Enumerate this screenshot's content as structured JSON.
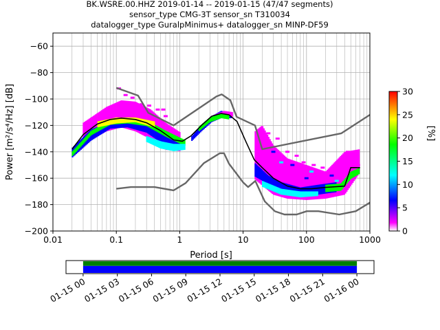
{
  "chart_data": [
    {
      "type": "heatmap",
      "title_lines": [
        "BK.WSRE.00.HHZ   2019-01-14 -- 2019-01-15  (47/47 segments)",
        "sensor_type CMG-3T sensor_sn T310034",
        "datalogger_type GuralpMinimus+ datalogger_sn MINP-DF59"
      ],
      "xlabel": "Period [s]",
      "ylabel": "Power [m²/s⁴/Hz] [dB]",
      "xscale": "log",
      "xlim": [
        0.01,
        1000
      ],
      "ylim": [
        -200,
        -50
      ],
      "grid": true,
      "x_ticks": [
        {
          "value": 0.01,
          "label": "0.01"
        },
        {
          "value": 0.1,
          "label": "0.1"
        },
        {
          "value": 1,
          "label": "1"
        },
        {
          "value": 10,
          "label": "10"
        },
        {
          "value": 100,
          "label": "100"
        },
        {
          "value": 1000,
          "label": "1000"
        }
      ],
      "y_ticks": [
        -200,
        -180,
        -160,
        -140,
        -120,
        -100,
        -80,
        -60
      ],
      "colorbar": {
        "label": "[%]",
        "range": [
          0,
          30
        ],
        "ticks": [
          0,
          5,
          10,
          15,
          20,
          25,
          30
        ],
        "colormap": [
          "#ffffff",
          "#ff00ff",
          "#0000ff",
          "#00ffff",
          "#00ff00",
          "#ffff00",
          "#ff0000"
        ]
      },
      "noise_model_high": {
        "x": [
          0.1,
          0.22,
          0.32,
          0.8,
          3.8,
          4.6,
          6.3,
          7.9,
          15.4,
          20,
          354.8,
          1000
        ],
        "y": [
          -91.5,
          -97.4,
          -110.5,
          -120,
          -98,
          -96.5,
          -101,
          -113.5,
          -120,
          -138,
          -126,
          -112
        ]
      },
      "noise_model_low": {
        "x": [
          0.1,
          0.17,
          0.4,
          0.8,
          1.24,
          2.4,
          4.3,
          5,
          6,
          10,
          12,
          15.6,
          21.9,
          31.6,
          45,
          70,
          101,
          154,
          328,
          600,
          1000
        ],
        "y": [
          -168,
          -166.7,
          -166.7,
          -169.2,
          -163.7,
          -148.6,
          -141.1,
          -141.1,
          -149,
          -163.2,
          -166.7,
          -162.1,
          -177.5,
          -185,
          -187.5,
          -187.5,
          -185,
          -185,
          -187.5,
          -185,
          -178.5
        ]
      },
      "mode_line": {
        "x": [
          0.02,
          0.03,
          0.05,
          0.08,
          0.12,
          0.2,
          0.3,
          0.5,
          0.8,
          1.1,
          1.5,
          2.2,
          3.2,
          4.5,
          6,
          8,
          11,
          15,
          20,
          30,
          50,
          80,
          120,
          200,
          400,
          500,
          700
        ],
        "y": [
          -138,
          -127,
          -119,
          -115.5,
          -114.5,
          -115.5,
          -118,
          -124,
          -131,
          -132,
          -128,
          -120,
          -113,
          -111,
          -112,
          -117,
          -132,
          -146,
          -152,
          -160,
          -166,
          -168,
          -168,
          -167,
          -166,
          -152,
          -152
        ]
      },
      "density_bands": [
        {
          "color": "#ff00ff",
          "x": [
            0.03,
            0.07,
            0.12,
            0.2,
            0.35,
            0.6,
            1
          ],
          "y_top": [
            -118,
            -106,
            -101,
            -102,
            -108,
            -118,
            -125
          ],
          "y_bottom": [
            -134,
            -124,
            -121,
            -124,
            -130,
            -138,
            -139
          ]
        },
        {
          "color": "#0000ff",
          "x": [
            0.02,
            0.04,
            0.08,
            0.15,
            0.3,
            0.6,
            1
          ],
          "y_top": [
            -137,
            -123,
            -117,
            -116,
            -118,
            -125,
            -131
          ],
          "y_bottom": [
            -144,
            -131,
            -122,
            -121,
            -125,
            -135,
            -137
          ]
        },
        {
          "color": "#00ff00",
          "x": [
            0.02,
            0.04,
            0.08,
            0.15,
            0.3,
            0.6,
            1.2
          ],
          "y_top": [
            -140,
            -124,
            -116,
            -114,
            -116,
            -124,
            -131
          ],
          "y_bottom": [
            -143,
            -127,
            -119,
            -118,
            -120,
            -128,
            -135
          ]
        },
        {
          "color": "#ffff00",
          "x": [
            0.05,
            0.1,
            0.2,
            0.4
          ],
          "y_top": [
            -117,
            -114,
            -114,
            -117
          ],
          "y_bottom": [
            -121,
            -118,
            -117,
            -121
          ]
        },
        {
          "color": "#00ffff",
          "x": [
            0.3,
            0.5,
            0.8,
            1.2
          ],
          "y_top": [
            -128,
            -132,
            -134,
            -134
          ],
          "y_bottom": [
            -132,
            -137,
            -139,
            -138
          ]
        },
        {
          "color": "#0000ff",
          "x": [
            1.5,
            2.2,
            3.2,
            4.5,
            6.5
          ],
          "y_top": [
            -129,
            -120,
            -113,
            -109,
            -110
          ],
          "y_bottom": [
            -132,
            -124,
            -117,
            -114,
            -114
          ]
        },
        {
          "color": "#ff00ff",
          "x": [
            3.5,
            5,
            7
          ],
          "y_top": [
            -112,
            -109,
            -110
          ],
          "y_bottom": [
            -114,
            -112,
            -113
          ]
        },
        {
          "color": "#00ff00",
          "x": [
            2,
            3,
            4.5,
            6
          ],
          "y_top": [
            -121,
            -114,
            -111,
            -112
          ],
          "y_bottom": [
            -124,
            -117,
            -114,
            -115
          ]
        },
        {
          "color": "#ff00ff",
          "x": [
            15,
            20,
            30,
            50,
            100,
            200,
            400,
            700
          ],
          "y_top": [
            -125,
            -120,
            -135,
            -145,
            -150,
            -155,
            -140,
            -138
          ],
          "y_bottom": [
            -160,
            -165,
            -172,
            -175,
            -176,
            -175,
            -172,
            -155
          ]
        },
        {
          "color": "#0000ff",
          "x": [
            15,
            25,
            40,
            80,
            150,
            300
          ],
          "y_top": [
            -148,
            -158,
            -163,
            -167,
            -165,
            -163
          ],
          "y_bottom": [
            -158,
            -164,
            -170,
            -173,
            -172,
            -170
          ]
        },
        {
          "color": "#00ffff",
          "x": [
            20,
            40,
            80,
            150
          ],
          "y_top": [
            -162,
            -168,
            -170,
            -170
          ],
          "y_bottom": [
            -166,
            -172,
            -174,
            -173
          ]
        },
        {
          "color": "#00ff00",
          "x": [
            200,
            350,
            500,
            700
          ],
          "y_top": [
            -165,
            -164,
            -155,
            -152
          ],
          "y_bottom": [
            -170,
            -169,
            -160,
            -156
          ]
        }
      ],
      "sparse_cells": [
        {
          "color": "#ff00ff",
          "x": [
            0.11,
            0.14,
            0.18,
            0.25,
            0.33,
            0.45,
            0.55,
            0.6
          ],
          "y": [
            -92,
            -97,
            -99,
            -104,
            -105,
            -108,
            -108,
            -113
          ]
        },
        {
          "color": "#ff00ff",
          "x": [
            25,
            35,
            50,
            70,
            90,
            130,
            180,
            250,
            320,
            450,
            520,
            600,
            650
          ],
          "y": [
            -126,
            -130,
            -140,
            -143,
            -148,
            -150,
            -152,
            -155,
            -147,
            -140,
            -144,
            -146,
            -150
          ]
        },
        {
          "color": "#0000ff",
          "x": [
            30,
            60,
            100,
            250
          ],
          "y": [
            -140,
            -150,
            -160,
            -158
          ]
        },
        {
          "color": "#00ffff",
          "x": [
            40,
            120,
            300
          ],
          "y": [
            -148,
            -155,
            -162
          ]
        }
      ]
    },
    {
      "type": "timeline",
      "ticks": [
        "01-15 00",
        "01-15 03",
        "01-15 06",
        "01-15 09",
        "01-15 12",
        "01-15 15",
        "01-15 18",
        "01-15 21",
        "01-16 00"
      ],
      "range_hours": [
        -1.5,
        25.5
      ],
      "coverage_hours": [
        0,
        24
      ],
      "layers": [
        {
          "color": "#008000",
          "fraction": 0.4
        },
        {
          "color": "#0000ff",
          "fraction": 0.6
        }
      ]
    }
  ]
}
